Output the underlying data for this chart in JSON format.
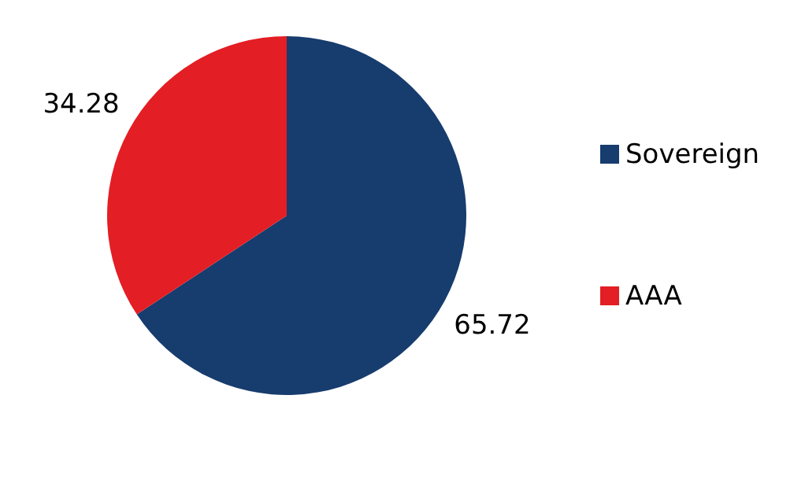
{
  "chart_data": {
    "type": "pie",
    "categories": [
      "Sovereign",
      "AAA"
    ],
    "values": [
      65.72,
      34.28
    ],
    "colors": [
      "#173c6e",
      "#e31e24"
    ],
    "data_labels": true,
    "legend": "right"
  }
}
